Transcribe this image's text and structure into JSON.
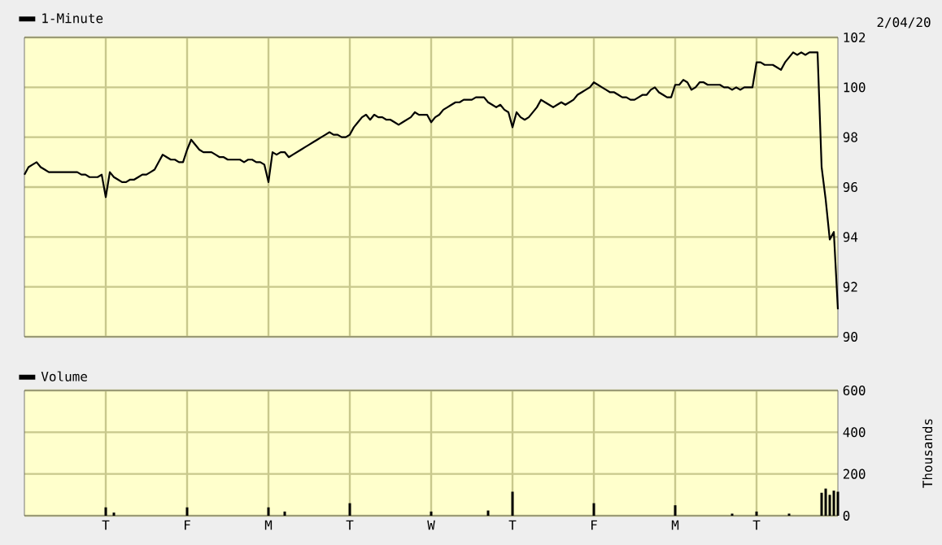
{
  "chart_data": [
    {
      "type": "line",
      "annotations": [
        "2/04/20"
      ],
      "categories": [
        null,
        null,
        null,
        null,
        null,
        null,
        null,
        null,
        null,
        null,
        null,
        null,
        null,
        null,
        null,
        null,
        null,
        null,
        null,
        null,
        null,
        null,
        null,
        null,
        null,
        null,
        null,
        null,
        null,
        null,
        null,
        null,
        null,
        null,
        null,
        null,
        null,
        null,
        null,
        null,
        null,
        null,
        null,
        null,
        null,
        null,
        null,
        null,
        null,
        null,
        null,
        null,
        null,
        null,
        null,
        null,
        null,
        null,
        null,
        null,
        null,
        null,
        null,
        null,
        null,
        null,
        null,
        null,
        null,
        null,
        null,
        null,
        null,
        null,
        null,
        null,
        null,
        null,
        null,
        null,
        null,
        null,
        null,
        null,
        null,
        null,
        null,
        null,
        null,
        null,
        null,
        null,
        null,
        null,
        null,
        null,
        null,
        null,
        null,
        null,
        null,
        null,
        null,
        null,
        null,
        null,
        null,
        null,
        null,
        null,
        null,
        null,
        null,
        null,
        null,
        null,
        null,
        null,
        null,
        null,
        null,
        null,
        null,
        null,
        null,
        null,
        null,
        null,
        null,
        null,
        null,
        null,
        null,
        null,
        null,
        null,
        null,
        null,
        null,
        null,
        null,
        null,
        null,
        null,
        null,
        null,
        null,
        null,
        null,
        null,
        null,
        null,
        null,
        null,
        null,
        null,
        null,
        null,
        null,
        null,
        null,
        null,
        null,
        null,
        null,
        null,
        null,
        null,
        null,
        null,
        null,
        null,
        null,
        null,
        null,
        null,
        null,
        null,
        null,
        null,
        null,
        null,
        null,
        null,
        null,
        null,
        null,
        null,
        null,
        null,
        null,
        null,
        null,
        null,
        null,
        null,
        null,
        null,
        null,
        null,
        null
      ],
      "ylim": [
        90,
        102
      ],
      "yticks": [
        90,
        92,
        94,
        96,
        98,
        100,
        102
      ],
      "tick_labels": "y",
      "grid": true,
      "legend": "top left",
      "line_style": "solid",
      "marker": "none",
      "series": [
        {
          "name": "1-Minute",
          "color": "#000000",
          "values": [
            96.5,
            96.8,
            96.9,
            97.0,
            96.8,
            96.7,
            96.6,
            96.6,
            96.6,
            96.6,
            96.6,
            96.6,
            96.6,
            96.6,
            96.5,
            96.5,
            96.4,
            96.4,
            96.4,
            96.5,
            95.6,
            96.6,
            96.4,
            96.3,
            96.2,
            96.2,
            96.3,
            96.3,
            96.4,
            96.5,
            96.5,
            96.6,
            96.7,
            97.0,
            97.3,
            97.2,
            97.1,
            97.1,
            97.0,
            97.0,
            97.5,
            97.9,
            97.7,
            97.5,
            97.4,
            97.4,
            97.4,
            97.3,
            97.2,
            97.2,
            97.1,
            97.1,
            97.1,
            97.1,
            97.0,
            97.1,
            97.1,
            97.0,
            97.0,
            96.9,
            96.2,
            97.4,
            97.3,
            97.4,
            97.4,
            97.2,
            97.3,
            97.4,
            97.5,
            97.6,
            97.7,
            97.8,
            97.9,
            98.0,
            98.1,
            98.2,
            98.1,
            98.1,
            98.0,
            98.0,
            98.1,
            98.4,
            98.6,
            98.8,
            98.9,
            98.7,
            98.9,
            98.8,
            98.8,
            98.7,
            98.7,
            98.6,
            98.5,
            98.6,
            98.7,
            98.8,
            99.0,
            98.9,
            98.9,
            98.9,
            98.6,
            98.8,
            98.9,
            99.1,
            99.2,
            99.3,
            99.4,
            99.4,
            99.5,
            99.5,
            99.5,
            99.6,
            99.6,
            99.6,
            99.4,
            99.3,
            99.2,
            99.3,
            99.1,
            99.0,
            98.4,
            99.0,
            98.8,
            98.7,
            98.8,
            99.0,
            99.2,
            99.5,
            99.4,
            99.3,
            99.2,
            99.3,
            99.4,
            99.3,
            99.4,
            99.5,
            99.7,
            99.8,
            99.9,
            100.0,
            100.2,
            100.1,
            100.0,
            99.9,
            99.8,
            99.8,
            99.7,
            99.6,
            99.6,
            99.5,
            99.5,
            99.6,
            99.7,
            99.7,
            99.9,
            100.0,
            99.8,
            99.7,
            99.6,
            99.6,
            100.1,
            100.1,
            100.3,
            100.2,
            99.9,
            100.0,
            100.2,
            100.2,
            100.1,
            100.1,
            100.1,
            100.1,
            100.0,
            100.0,
            99.9,
            100.0,
            99.9,
            100.0,
            100.0,
            100.0,
            101.0,
            101.0,
            100.9,
            100.9,
            100.9,
            100.8,
            100.7,
            101.0,
            101.2,
            101.4,
            101.3,
            101.4,
            101.3,
            101.4,
            101.4,
            101.4,
            96.8,
            95.5,
            93.9,
            94.2,
            91.1
          ]
        }
      ]
    },
    {
      "type": "bar",
      "ylabel": "Thousands",
      "categories": [
        null,
        null,
        null,
        null,
        null,
        null,
        null,
        null,
        null,
        null,
        null,
        null,
        null,
        null,
        null,
        null,
        null,
        null,
        null,
        null,
        "T",
        null,
        null,
        null,
        null,
        null,
        null,
        null,
        null,
        null,
        null,
        null,
        null,
        null,
        null,
        null,
        null,
        null,
        null,
        null,
        "F",
        null,
        null,
        null,
        null,
        null,
        null,
        null,
        null,
        null,
        null,
        null,
        null,
        null,
        null,
        null,
        null,
        null,
        null,
        null,
        "M",
        null,
        null,
        null,
        null,
        null,
        null,
        null,
        null,
        null,
        null,
        null,
        null,
        null,
        null,
        null,
        null,
        null,
        null,
        null,
        "T",
        null,
        null,
        null,
        null,
        null,
        null,
        null,
        null,
        null,
        null,
        null,
        null,
        null,
        null,
        null,
        null,
        null,
        null,
        null,
        "W",
        null,
        null,
        null,
        null,
        null,
        null,
        null,
        null,
        null,
        null,
        null,
        null,
        null,
        null,
        null,
        null,
        null,
        null,
        null,
        "T",
        null,
        null,
        null,
        null,
        null,
        null,
        null,
        null,
        null,
        null,
        null,
        null,
        null,
        null,
        null,
        null,
        null,
        null,
        null,
        "F",
        null,
        null,
        null,
        null,
        null,
        null,
        null,
        null,
        null,
        null,
        null,
        null,
        null,
        null,
        null,
        null,
        null,
        null,
        null,
        "M",
        null,
        null,
        null,
        null,
        null,
        null,
        null,
        null,
        null,
        null,
        null,
        null,
        null,
        null,
        null,
        null,
        null,
        null,
        null,
        "T",
        null,
        null,
        null,
        null,
        null,
        null,
        null,
        null,
        null,
        null,
        null,
        null,
        null,
        null,
        null,
        null,
        null,
        null,
        null,
        null
      ],
      "ylim": [
        0,
        600
      ],
      "yticks": [
        0,
        200,
        400,
        600
      ],
      "grid": true,
      "legend": "top left",
      "series": [
        {
          "name": "Volume",
          "color": "#000000",
          "values": [
            null,
            null,
            null,
            null,
            null,
            null,
            null,
            null,
            null,
            null,
            null,
            null,
            null,
            null,
            null,
            null,
            null,
            null,
            null,
            null,
            40,
            null,
            15,
            null,
            null,
            null,
            null,
            null,
            null,
            null,
            null,
            null,
            null,
            null,
            null,
            null,
            null,
            null,
            null,
            null,
            40,
            null,
            null,
            null,
            null,
            null,
            null,
            null,
            null,
            null,
            null,
            null,
            null,
            null,
            null,
            null,
            null,
            null,
            null,
            null,
            40,
            null,
            null,
            null,
            20,
            null,
            null,
            null,
            null,
            null,
            null,
            null,
            null,
            null,
            null,
            null,
            null,
            null,
            null,
            null,
            60,
            null,
            null,
            null,
            null,
            null,
            null,
            null,
            null,
            null,
            null,
            null,
            null,
            null,
            null,
            null,
            null,
            null,
            null,
            null,
            20,
            null,
            null,
            null,
            null,
            null,
            null,
            null,
            null,
            null,
            null,
            null,
            null,
            null,
            25,
            null,
            null,
            null,
            null,
            null,
            115,
            null,
            null,
            null,
            null,
            null,
            null,
            null,
            null,
            null,
            null,
            null,
            null,
            null,
            null,
            null,
            null,
            null,
            null,
            null,
            60,
            null,
            null,
            null,
            null,
            null,
            null,
            null,
            null,
            null,
            null,
            null,
            null,
            null,
            null,
            null,
            null,
            null,
            null,
            null,
            50,
            null,
            null,
            null,
            null,
            null,
            null,
            null,
            null,
            null,
            null,
            null,
            null,
            null,
            10,
            null,
            null,
            null,
            null,
            null,
            20,
            null,
            null,
            null,
            null,
            null,
            null,
            null,
            10,
            null,
            null,
            null,
            null,
            null,
            null,
            null,
            110,
            130,
            100,
            120,
            115
          ]
        }
      ]
    }
  ]
}
